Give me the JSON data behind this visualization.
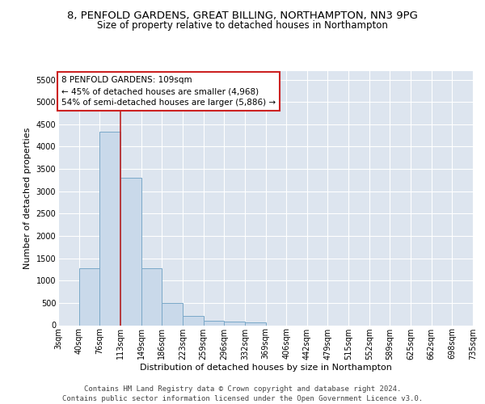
{
  "title": "8, PENFOLD GARDENS, GREAT BILLING, NORTHAMPTON, NN3 9PG",
  "subtitle": "Size of property relative to detached houses in Northampton",
  "xlabel": "Distribution of detached houses by size in Northampton",
  "ylabel": "Number of detached properties",
  "bin_labels": [
    "3sqm",
    "40sqm",
    "76sqm",
    "113sqm",
    "149sqm",
    "186sqm",
    "223sqm",
    "259sqm",
    "296sqm",
    "332sqm",
    "369sqm",
    "406sqm",
    "442sqm",
    "479sqm",
    "515sqm",
    "552sqm",
    "589sqm",
    "625sqm",
    "662sqm",
    "698sqm",
    "735sqm"
  ],
  "bar_values": [
    0,
    1270,
    4330,
    3300,
    1280,
    490,
    215,
    95,
    80,
    60,
    0,
    0,
    0,
    0,
    0,
    0,
    0,
    0,
    0,
    0
  ],
  "bar_color": "#c9d9ea",
  "bar_edge_color": "#7aa8c8",
  "vline_x": 3.0,
  "vline_color": "#bb2222",
  "annotation_line1": "8 PENFOLD GARDENS: 109sqm",
  "annotation_line2": "← 45% of detached houses are smaller (4,968)",
  "annotation_line3": "54% of semi-detached houses are larger (5,886) →",
  "annotation_box_facecolor": "#ffffff",
  "annotation_box_edgecolor": "#cc2222",
  "ylim": [
    0,
    5700
  ],
  "yticks": [
    0,
    500,
    1000,
    1500,
    2000,
    2500,
    3000,
    3500,
    4000,
    4500,
    5000,
    5500
  ],
  "background_color": "#dde5ef",
  "footer_line1": "Contains HM Land Registry data © Crown copyright and database right 2024.",
  "footer_line2": "Contains public sector information licensed under the Open Government Licence v3.0.",
  "title_fontsize": 9.5,
  "subtitle_fontsize": 8.5,
  "axis_label_fontsize": 8,
  "tick_fontsize": 7,
  "annotation_fontsize": 7.5,
  "footer_fontsize": 6.5
}
